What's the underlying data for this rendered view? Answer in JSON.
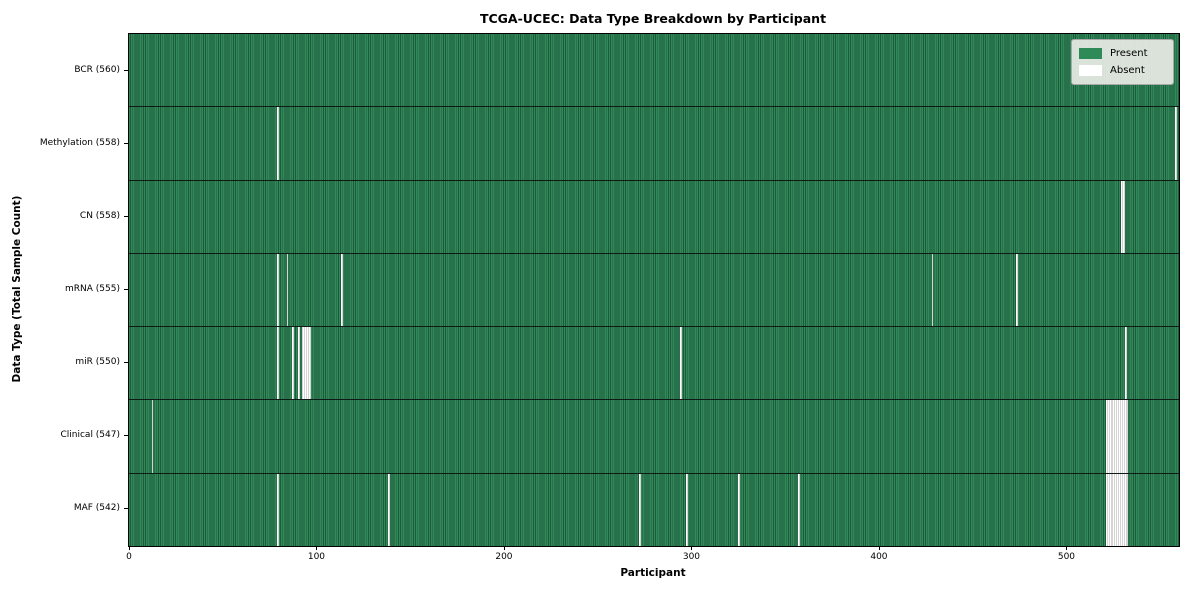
{
  "figure": {
    "title": "TCGA-UCEC: Data Type Breakdown by Participant",
    "xlabel": "Participant",
    "ylabel": "Data Type (Total Sample Count)"
  },
  "legend": {
    "items": [
      {
        "label": "Present",
        "color": "#2e8b57"
      },
      {
        "label": "Absent",
        "color": "#ffffff"
      }
    ]
  },
  "chart_data": {
    "type": "heatmap",
    "title": "TCGA-UCEC: Data Type Breakdown by Participant",
    "xlabel": "Participant",
    "ylabel": "Data Type (Total Sample Count)",
    "n_participants": 560,
    "xlim": [
      -0.5,
      559.5
    ],
    "x_ticks": [
      0,
      100,
      200,
      300,
      400,
      500
    ],
    "present_color": "#2e8b57",
    "absent_color": "#ffffff",
    "legend_position": "upper right",
    "grid": false,
    "rows": [
      {
        "label": "BCR (560)",
        "data_type": "BCR",
        "present_count": 560,
        "absent_participants": []
      },
      {
        "label": "Methylation (558)",
        "data_type": "Methylation",
        "present_count": 558,
        "absent_participants": [
          79,
          558
        ]
      },
      {
        "label": "CN (558)",
        "data_type": "CN",
        "present_count": 558,
        "absent_participants": [
          529,
          530
        ]
      },
      {
        "label": "mRNA (555)",
        "data_type": "mRNA",
        "present_count": 555,
        "absent_participants": [
          79,
          84,
          113,
          428,
          473
        ]
      },
      {
        "label": "miR (550)",
        "data_type": "miR",
        "present_count": 550,
        "absent_participants": [
          79,
          87,
          90,
          92,
          93,
          94,
          95,
          96,
          294,
          531
        ]
      },
      {
        "label": "Clinical (547)",
        "data_type": "Clinical",
        "present_count": 547,
        "absent_participants": [
          12,
          521,
          522,
          523,
          524,
          525,
          526,
          527,
          528,
          529,
          530,
          531,
          532
        ]
      },
      {
        "label": "MAF (542)",
        "data_type": "MAF",
        "present_count": 542,
        "absent_participants": [
          79,
          138,
          272,
          297,
          325,
          357,
          521,
          522,
          523,
          524,
          525,
          526,
          527,
          528,
          529,
          530,
          531,
          532
        ]
      }
    ]
  }
}
